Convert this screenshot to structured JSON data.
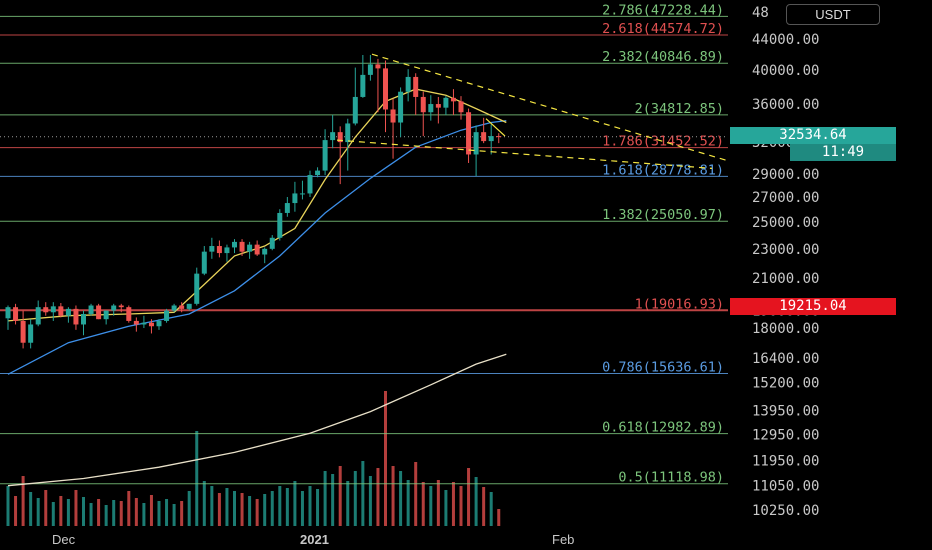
{
  "currency": "USDT",
  "price_badges": {
    "current": "32534.64",
    "countdown": "11:49",
    "highlight": "19215.04"
  },
  "colors": {
    "bull": "#26a69a",
    "bear": "#ef5350",
    "fib_green": "#7cc47c",
    "fib_red": "#e05050",
    "fib_blue": "#5a9be0",
    "ma_short": "#e8d35a",
    "ma_mid": "#3d8fe8",
    "ma_long": "#e8e0c8",
    "trendline": "#f5e642"
  },
  "chart_data": {
    "type": "candlestick",
    "symbol_currency": "USDT",
    "y_axis": {
      "scale": "log",
      "ticks": [
        "48",
        "44000.00",
        "40000.00",
        "36000.00",
        "32000.00",
        "29000.00",
        "27000.00",
        "25000.00",
        "23000.00",
        "21000.00",
        "19000.00",
        "18000.00",
        "16400.00",
        "15200.00",
        "13950.00",
        "12950.00",
        "11950.00",
        "11050.00",
        "10250.00"
      ]
    },
    "x_axis": {
      "ticks": [
        "Dec",
        "2021",
        "Feb"
      ]
    },
    "fib_levels": [
      {
        "label": "2.786(47228.44)",
        "value": 47228.44,
        "color": "green"
      },
      {
        "label": "2.618(44574.72)",
        "value": 44574.72,
        "color": "red"
      },
      {
        "label": "2.382(40846.89)",
        "value": 40846.89,
        "color": "green"
      },
      {
        "label": "2(34812.85)",
        "value": 34812.85,
        "color": "green"
      },
      {
        "label": "1.786(31452.52)",
        "value": 31452.52,
        "color": "red"
      },
      {
        "label": "1.618(28778.81)",
        "value": 28778.81,
        "color": "blue"
      },
      {
        "label": "1.382(25050.97)",
        "value": 25050.97,
        "color": "green"
      },
      {
        "label": "1(19016.93)",
        "value": 19016.93,
        "color": "red"
      },
      {
        "label": "0.786(15636.61)",
        "value": 15636.61,
        "color": "blue"
      },
      {
        "label": "0.618(12982.89)",
        "value": 12982.89,
        "color": "green"
      },
      {
        "label": "0.5(11118.98)",
        "value": 11118.98,
        "color": "green"
      }
    ],
    "candles": [
      [
        18550,
        19300,
        17900,
        19200
      ],
      [
        19200,
        19400,
        18200,
        18400
      ],
      [
        18400,
        19000,
        16900,
        17200
      ],
      [
        17200,
        18500,
        16900,
        18200
      ],
      [
        18200,
        19600,
        18100,
        19200
      ],
      [
        19200,
        19500,
        18700,
        18900
      ],
      [
        18900,
        19500,
        18400,
        19250
      ],
      [
        19250,
        19450,
        18600,
        18700
      ],
      [
        18700,
        19200,
        18300,
        19100
      ],
      [
        19100,
        19300,
        17900,
        18200
      ],
      [
        18200,
        19000,
        17600,
        18800
      ],
      [
        18800,
        19400,
        18700,
        19300
      ],
      [
        19300,
        19400,
        18500,
        18500
      ],
      [
        18500,
        19000,
        18200,
        19000
      ],
      [
        19000,
        19400,
        18700,
        19300
      ],
      [
        19300,
        19400,
        18900,
        19200
      ],
      [
        19200,
        19300,
        18300,
        18400
      ],
      [
        18400,
        18600,
        17800,
        18200
      ],
      [
        18200,
        18700,
        18000,
        18300
      ],
      [
        18300,
        18500,
        17700,
        18100
      ],
      [
        18100,
        18500,
        17900,
        18400
      ],
      [
        18400,
        19100,
        18300,
        19000
      ],
      [
        19000,
        19400,
        18900,
        19300
      ],
      [
        19300,
        19500,
        18900,
        19100
      ],
      [
        19100,
        19400,
        19000,
        19400
      ],
      [
        19400,
        21700,
        19300,
        21300
      ],
      [
        21300,
        23200,
        21200,
        22800
      ],
      [
        22800,
        23800,
        22300,
        23200
      ],
      [
        23200,
        23600,
        22400,
        22700
      ],
      [
        22700,
        23300,
        22100,
        23100
      ],
      [
        23100,
        23700,
        22700,
        23500
      ],
      [
        23500,
        23700,
        22500,
        22800
      ],
      [
        22800,
        23500,
        22300,
        23300
      ],
      [
        23300,
        23600,
        22500,
        22600
      ],
      [
        22600,
        23100,
        22000,
        23000
      ],
      [
        23000,
        24000,
        22900,
        23800
      ],
      [
        23800,
        26000,
        23600,
        25700
      ],
      [
        25700,
        27000,
        25400,
        26500
      ],
      [
        26500,
        28300,
        25800,
        27300
      ],
      [
        27300,
        28400,
        26800,
        27300
      ],
      [
        27300,
        29300,
        27000,
        28900
      ],
      [
        28900,
        29600,
        28700,
        29300
      ],
      [
        29300,
        33300,
        28900,
        32200
      ],
      [
        32200,
        34800,
        31400,
        33000
      ],
      [
        33000,
        33600,
        28100,
        32000
      ],
      [
        32000,
        34400,
        29300,
        33900
      ],
      [
        33900,
        40300,
        33700,
        36800
      ],
      [
        36800,
        41900,
        36700,
        39400
      ],
      [
        39400,
        41900,
        38700,
        40700
      ],
      [
        40700,
        41400,
        35100,
        40200
      ],
      [
        40200,
        41200,
        33000,
        35400
      ],
      [
        35400,
        36600,
        30400,
        34000
      ],
      [
        34000,
        37900,
        32500,
        37400
      ],
      [
        37400,
        40100,
        36300,
        39150
      ],
      [
        39150,
        39600,
        34800,
        36800
      ],
      [
        36800,
        37400,
        32600,
        35100
      ],
      [
        35100,
        37000,
        34200,
        36000
      ],
      [
        36000,
        36800,
        33900,
        35600
      ],
      [
        35600,
        36900,
        34800,
        36700
      ],
      [
        36700,
        37700,
        34800,
        36300
      ],
      [
        36300,
        36900,
        34300,
        35100
      ],
      [
        35100,
        35500,
        30000,
        30800
      ],
      [
        30800,
        33700,
        28800,
        33000
      ],
      [
        33000,
        34500,
        31900,
        32100
      ],
      [
        32100,
        33800,
        30800,
        32600
      ],
      [
        32600,
        32900,
        31900,
        32534.64
      ]
    ],
    "volume_relative": [
      0.4,
      0.3,
      0.5,
      0.34,
      0.28,
      0.36,
      0.24,
      0.3,
      0.27,
      0.36,
      0.29,
      0.23,
      0.27,
      0.21,
      0.26,
      0.25,
      0.35,
      0.28,
      0.23,
      0.31,
      0.25,
      0.27,
      0.22,
      0.25,
      0.35,
      0.95,
      0.45,
      0.4,
      0.33,
      0.38,
      0.35,
      0.33,
      0.3,
      0.27,
      0.32,
      0.35,
      0.4,
      0.38,
      0.45,
      0.35,
      0.4,
      0.37,
      0.55,
      0.52,
      0.6,
      0.45,
      0.55,
      0.65,
      0.5,
      0.58,
      1.35,
      0.6,
      0.55,
      0.46,
      0.64,
      0.44,
      0.4,
      0.46,
      0.36,
      0.44,
      0.4,
      0.58,
      0.49,
      0.39,
      0.34,
      0.17
    ],
    "ma_short": [
      [
        0,
        18400
      ],
      [
        8,
        18700
      ],
      [
        16,
        18800
      ],
      [
        22,
        18900
      ],
      [
        26,
        20600
      ],
      [
        30,
        22500
      ],
      [
        34,
        23200
      ],
      [
        38,
        24500
      ],
      [
        42,
        28500
      ],
      [
        46,
        32500
      ],
      [
        50,
        36300
      ],
      [
        54,
        37700
      ],
      [
        58,
        37000
      ],
      [
        62,
        35500
      ],
      [
        66,
        34000
      ]
    ],
    "ma_mid": [
      [
        0,
        15600
      ],
      [
        8,
        17200
      ],
      [
        16,
        18100
      ],
      [
        24,
        18800
      ],
      [
        30,
        20200
      ],
      [
        36,
        22500
      ],
      [
        42,
        25700
      ],
      [
        48,
        28600
      ],
      [
        54,
        31500
      ],
      [
        60,
        33200
      ],
      [
        64,
        34000
      ],
      [
        66,
        34200
      ]
    ],
    "ma_long": [
      [
        0,
        11050
      ],
      [
        10,
        11300
      ],
      [
        20,
        11700
      ],
      [
        30,
        12250
      ],
      [
        40,
        13000
      ],
      [
        48,
        13900
      ],
      [
        56,
        15100
      ],
      [
        62,
        16100
      ],
      [
        66,
        16600
      ]
    ]
  }
}
